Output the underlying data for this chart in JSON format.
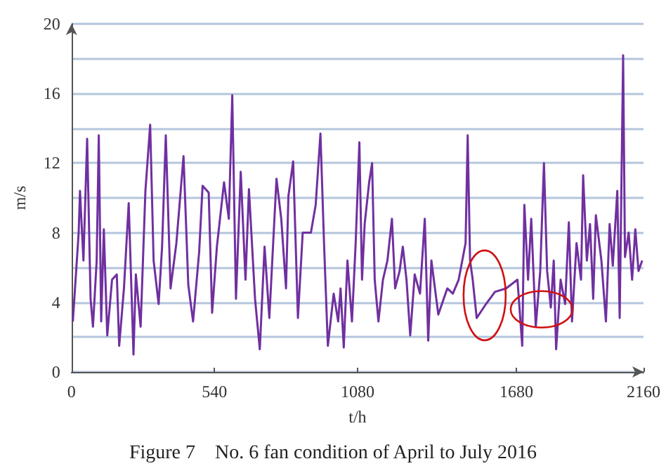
{
  "chart_data": {
    "type": "line",
    "title": "Figure 7    No. 6 fan condition of April to July 2016",
    "xlabel": "t/h",
    "ylabel": "m/s",
    "xlim": [
      0,
      2160
    ],
    "xticks": [
      0,
      540,
      1080,
      1680,
      2160
    ],
    "ylim": [
      0,
      20
    ],
    "yticks": [
      0,
      {
        "value": 2,
        "label": null
      },
      4,
      {
        "value": 6,
        "label": null
      },
      8,
      {
        "value": 10,
        "label": null
      },
      12,
      {
        "value": 14,
        "label": null
      },
      16,
      {
        "value": 18,
        "label": null
      },
      20
    ],
    "grid": "y",
    "marker": "none",
    "line_style": "solid",
    "series": [
      {
        "color": "#7030a0",
        "x": [
          5,
          27,
          32,
          45,
          59,
          72,
          81,
          95,
          103,
          112,
          122,
          135,
          153,
          171,
          180,
          198,
          216,
          234,
          243,
          261,
          279,
          297,
          310,
          329,
          342,
          356,
          374,
          396,
          423,
          441,
          459,
          482,
          495,
          518,
          531,
          549,
          576,
          594,
          607,
          621,
          639,
          657,
          670,
          693,
          711,
          729,
          747,
          774,
          792,
          810,
          819,
          837,
          855,
          873,
          904,
          922,
          940,
          954,
          968,
          990,
          1007,
          1016,
          1028,
          1042,
          1059,
          1073,
          1087,
          1097,
          1107,
          1124,
          1135,
          1145,
          1159,
          1176,
          1193,
          1210,
          1222,
          1239,
          1251,
          1265,
          1279,
          1296,
          1316,
          1334,
          1347,
          1359,
          1385,
          1419,
          1440,
          1462,
          1488,
          1496,
          1505,
          1515,
          1530,
          1565,
          1599,
          1641,
          1684,
          1702,
          1710,
          1724,
          1736,
          1753,
          1770,
          1784,
          1796,
          1810,
          1821,
          1830,
          1847,
          1864,
          1878,
          1890,
          1907,
          1924,
          1932,
          1946,
          1958,
          1970,
          1980,
          2001,
          2018,
          2032,
          2044,
          2061,
          2070,
          2083,
          2090,
          2104,
          2117,
          2129,
          2141,
          2155
        ],
        "values": [
          2.9,
          8.0,
          10.4,
          6.4,
          13.4,
          4.2,
          2.6,
          6.4,
          13.6,
          2.9,
          8.2,
          2.1,
          5.3,
          5.6,
          1.5,
          4.8,
          9.7,
          1.0,
          5.6,
          2.6,
          10.4,
          14.2,
          6.4,
          3.9,
          7.2,
          13.6,
          4.8,
          7.4,
          12.4,
          5.0,
          2.9,
          6.9,
          10.7,
          10.3,
          3.4,
          7.2,
          10.9,
          8.8,
          15.9,
          4.2,
          11.5,
          5.3,
          10.5,
          4.2,
          1.3,
          7.2,
          3.1,
          11.1,
          8.8,
          4.8,
          10.1,
          12.1,
          3.1,
          8.0,
          8.0,
          9.6,
          13.7,
          7.2,
          1.5,
          4.5,
          2.9,
          4.8,
          1.4,
          6.4,
          2.9,
          7.4,
          13.2,
          5.3,
          8.5,
          10.9,
          12.0,
          5.3,
          2.9,
          5.3,
          6.4,
          8.8,
          4.8,
          5.8,
          7.2,
          5.3,
          2.1,
          5.6,
          4.5,
          8.8,
          1.8,
          6.4,
          3.3,
          4.8,
          4.5,
          5.3,
          7.4,
          13.6,
          6.4,
          5.3,
          3.1,
          3.9,
          4.6,
          4.8,
          5.3,
          1.5,
          9.6,
          5.3,
          8.8,
          2.6,
          5.8,
          12.0,
          5.8,
          3.7,
          6.4,
          1.3,
          5.3,
          3.9,
          8.6,
          2.9,
          7.4,
          5.3,
          11.3,
          6.4,
          8.5,
          4.2,
          9.0,
          6.4,
          2.9,
          8.5,
          6.1,
          10.4,
          3.1,
          18.2,
          6.6,
          8.0,
          5.3,
          8.2,
          5.8,
          6.4
        ]
      }
    ]
  }
}
